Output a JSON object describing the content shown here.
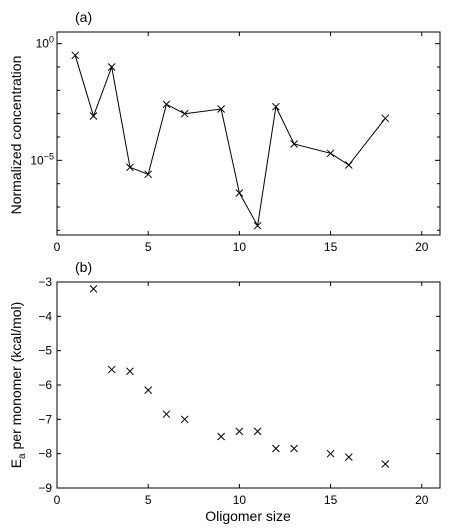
{
  "chart_data": [
    {
      "type": "line",
      "panel_label": "(a)",
      "xlabel": "",
      "ylabel": "Normalized concentration",
      "yscale": "log",
      "xlim": [
        0,
        21
      ],
      "ylim_log10": [
        -8.2,
        0.5
      ],
      "grid": false,
      "marker": "x",
      "x": [
        1,
        2,
        3,
        4,
        5,
        6,
        7,
        9,
        10,
        11,
        12,
        13,
        15,
        16,
        18
      ],
      "log10_y": [
        -0.5,
        -3.1,
        -1.0,
        -5.3,
        -5.6,
        -2.6,
        -3.0,
        -2.8,
        -6.4,
        -7.8,
        -2.7,
        -4.3,
        -4.7,
        -5.2,
        -3.2
      ],
      "xticks": [
        "0",
        "5",
        "10",
        "15",
        "20"
      ],
      "xtick_values": [
        0,
        5,
        10,
        15,
        20
      ],
      "yticks": [
        {
          "base": "10",
          "exp": "0",
          "log10": 0
        },
        {
          "base": "10",
          "exp": "−5",
          "log10": -5
        }
      ]
    },
    {
      "type": "scatter",
      "panel_label": "(b)",
      "xlabel": "Oligomer size",
      "ylabel_main": "E",
      "ylabel_sub": "a",
      "ylabel_rest": " per monomer (kcal/mol)",
      "xlim": [
        0,
        21
      ],
      "ylim": [
        -9,
        -3
      ],
      "grid": false,
      "marker": "x",
      "x": [
        2,
        3,
        4,
        5,
        6,
        7,
        9,
        10,
        11,
        12,
        13,
        15,
        16,
        18
      ],
      "y": [
        -3.2,
        -5.55,
        -5.6,
        -6.15,
        -6.85,
        -7.0,
        -7.5,
        -7.35,
        -7.35,
        -7.85,
        -7.85,
        -8.0,
        -8.1,
        -8.3
      ],
      "xticks": [
        "0",
        "5",
        "10",
        "15",
        "20"
      ],
      "xtick_values": [
        0,
        5,
        10,
        15,
        20
      ],
      "yticks": [
        "−3",
        "−4",
        "−5",
        "−6",
        "−7",
        "−8",
        "−9"
      ],
      "ytick_values": [
        -3,
        -4,
        -5,
        -6,
        -7,
        -8,
        -9
      ]
    }
  ]
}
